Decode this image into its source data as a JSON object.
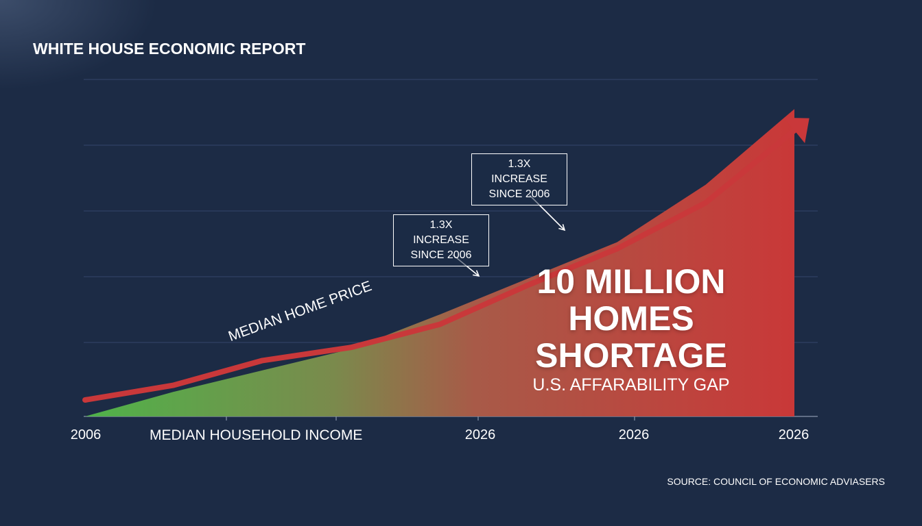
{
  "header": {
    "title": "WHITE HOUSE ECONOMIC REPORT"
  },
  "colors": {
    "background": "#1c2b45",
    "price_line": "#c9383a",
    "area_start": "#4fb34a",
    "area_end": "#c93838",
    "gridline": "#33466a"
  },
  "chart_data": {
    "type": "area",
    "x_ticks": [
      "2006",
      "2026",
      "2026",
      "2026"
    ],
    "series": [
      {
        "name": "MEDIAN HOME PRICE",
        "style": "line",
        "values": [
          1.0,
          1.9,
          3.4,
          4.2,
          5.6,
          8.0,
          10.2,
          13.0,
          17.4
        ]
      },
      {
        "name": "MEDIAN HOUSEHOLD INCOME",
        "style": "area",
        "values": [
          0.0,
          1.5,
          2.8,
          4.1,
          6.2,
          8.4,
          10.6,
          14.1,
          18.7
        ]
      }
    ],
    "ylim": [
      0,
      20
    ],
    "grid": true,
    "annotations": [
      {
        "id": "callout-1",
        "text": "1.3X INCREASE\nSINCE 2006"
      },
      {
        "id": "callout-2",
        "text": "1.3X INCREASE\nSINCE 2006"
      }
    ],
    "headline": "10 MILLION\nHOMES\nSHORTAGE",
    "subheadline": "U.S. AFFARABILITY GAP"
  },
  "footer": {
    "source": "SOURCE: COUNCIL OF ECONOMIC ADVIASERS"
  }
}
